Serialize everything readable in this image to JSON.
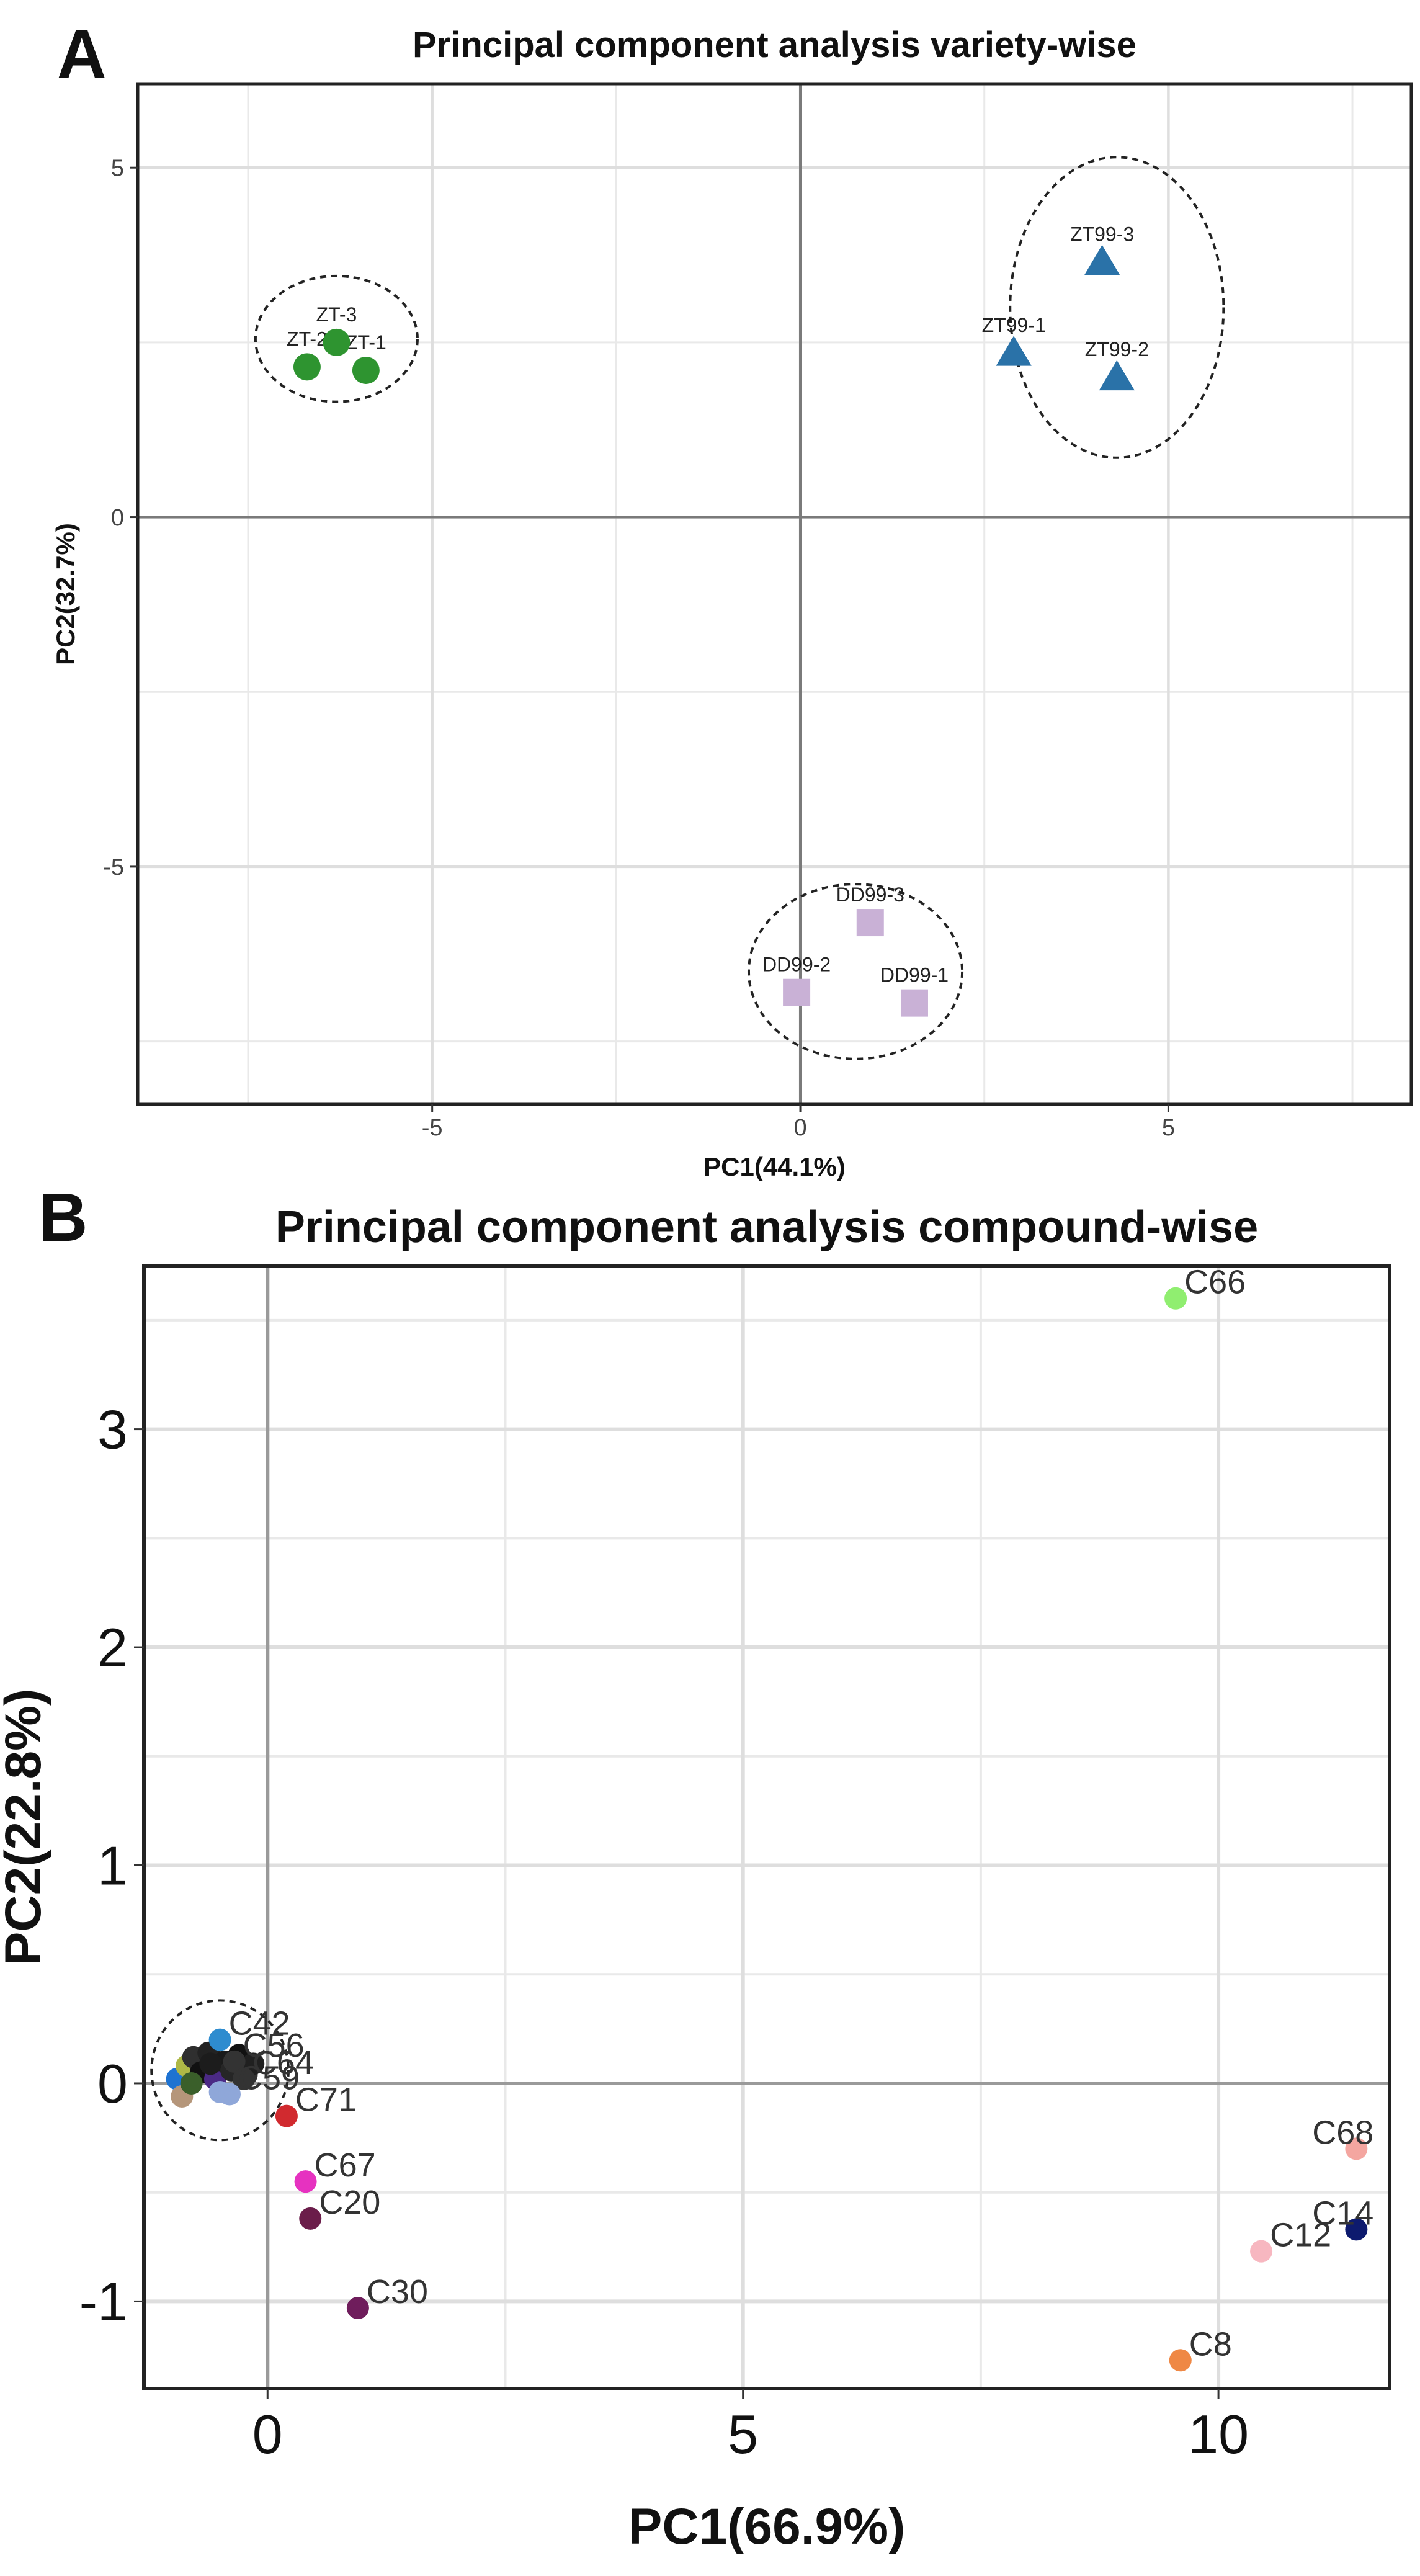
{
  "figure": {
    "panels": [
      "A",
      "B"
    ]
  },
  "chart_data": [
    {
      "type": "scatter",
      "panel": "A",
      "title": "Principal component analysis variety-wise",
      "xlabel": "PC1(44.1%)",
      "ylabel": "PC2(32.7%)",
      "xlim": [
        -9,
        8.3
      ],
      "ylim": [
        -8.4,
        6.2
      ],
      "xticks": [
        -5,
        0,
        5
      ],
      "yticks": [
        -5,
        0,
        5
      ],
      "xminor": [
        -7.5,
        -2.5,
        2.5,
        7.5
      ],
      "yminor": [
        -7.5,
        -2.5,
        2.5
      ],
      "grid": true,
      "zero_lines": true,
      "series": [
        {
          "name": "ZT",
          "marker": "circle",
          "color": "#2e9430",
          "points": [
            {
              "label": "ZT-1",
              "x": -5.9,
              "y": 2.1
            },
            {
              "label": "ZT-2",
              "x": -6.7,
              "y": 2.15
            },
            {
              "label": "ZT-3",
              "x": -6.3,
              "y": 2.5
            }
          ],
          "ellipse": {
            "cx": -6.3,
            "cy": 2.55,
            "rx": 1.1,
            "ry": 0.9
          }
        },
        {
          "name": "ZT99",
          "marker": "triangle",
          "color": "#2a72a8",
          "points": [
            {
              "label": "ZT99-1",
              "x": 2.9,
              "y": 2.35
            },
            {
              "label": "ZT99-2",
              "x": 4.3,
              "y": 2.0
            },
            {
              "label": "ZT99-3",
              "x": 4.1,
              "y": 3.65
            }
          ],
          "ellipse": {
            "cx": 4.3,
            "cy": 3.0,
            "rx": 1.45,
            "ry": 2.15
          }
        },
        {
          "name": "DD99",
          "marker": "square",
          "color": "#c9b1d6",
          "points": [
            {
              "label": "DD99-1",
              "x": 1.55,
              "y": -6.95
            },
            {
              "label": "DD99-2",
              "x": -0.05,
              "y": -6.8
            },
            {
              "label": "DD99-3",
              "x": 0.95,
              "y": -5.8
            }
          ],
          "ellipse": {
            "cx": 0.75,
            "cy": -6.5,
            "rx": 1.45,
            "ry": 1.25
          }
        }
      ]
    },
    {
      "type": "scatter",
      "panel": "B",
      "title": "Principal component analysis compound-wise",
      "xlabel": "PC1(66.9%)",
      "ylabel": "PC2(22.8%)",
      "xlim": [
        -1.3,
        11.8
      ],
      "ylim": [
        -1.4,
        3.75
      ],
      "xticks": [
        0,
        5,
        10
      ],
      "yticks": [
        -1,
        0,
        1,
        2,
        3
      ],
      "xminor": [
        -2.5,
        2.5,
        7.5
      ],
      "yminor": [
        -0.5,
        0.5,
        1.5,
        2.5,
        3.5
      ],
      "grid": true,
      "zero_lines": true,
      "cluster_ellipse": {
        "cx": -0.5,
        "cy": 0.06,
        "rx": 0.72,
        "ry": 0.32
      },
      "points": [
        {
          "label": "C66",
          "x": 9.55,
          "y": 3.6,
          "color": "#90ee70"
        },
        {
          "label": "C68",
          "x": 11.45,
          "y": -0.3,
          "color": "#f4a6a0"
        },
        {
          "label": "C14",
          "x": 11.45,
          "y": -0.67,
          "color": "#0d1a6e"
        },
        {
          "label": "C12",
          "x": 10.45,
          "y": -0.77,
          "color": "#f7b7c0"
        },
        {
          "label": "C8",
          "x": 9.6,
          "y": -1.27,
          "color": "#ef8845"
        },
        {
          "label": "C71",
          "x": 0.2,
          "y": -0.15,
          "color": "#d12a2f"
        },
        {
          "label": "C67",
          "x": 0.4,
          "y": -0.45,
          "color": "#e632c0"
        },
        {
          "label": "C20",
          "x": 0.45,
          "y": -0.62,
          "color": "#6b1d4a"
        },
        {
          "label": "C30",
          "x": 0.95,
          "y": -1.03,
          "color": "#6f1d5c"
        },
        {
          "label": "C42",
          "x": -0.5,
          "y": 0.2,
          "color": "#2e8ccf"
        },
        {
          "label": "C56",
          "x": -0.35,
          "y": 0.1,
          "color": "#333333"
        },
        {
          "label": "C64",
          "x": -0.25,
          "y": 0.02,
          "color": "#333333"
        },
        {
          "label": "C59",
          "x": -0.4,
          "y": -0.05,
          "color": "#8fa7d9"
        }
      ],
      "cluster_points": [
        {
          "x": -0.95,
          "y": 0.02,
          "color": "#1e73d2"
        },
        {
          "x": -0.9,
          "y": -0.06,
          "color": "#b5967a"
        },
        {
          "x": -0.85,
          "y": 0.08,
          "color": "#aeb846"
        },
        {
          "x": -0.78,
          "y": 0.12,
          "color": "#2f2f2f"
        },
        {
          "x": -0.7,
          "y": 0.05,
          "color": "#111111"
        },
        {
          "x": -0.62,
          "y": 0.14,
          "color": "#222222"
        },
        {
          "x": -0.55,
          "y": 0.02,
          "color": "#4b2a85"
        },
        {
          "x": -0.5,
          "y": -0.04,
          "color": "#8fa7d9"
        },
        {
          "x": -0.45,
          "y": 0.1,
          "color": "#1a1a1a"
        },
        {
          "x": -0.38,
          "y": 0.06,
          "color": "#262626"
        },
        {
          "x": -0.3,
          "y": 0.13,
          "color": "#111111"
        },
        {
          "x": -0.22,
          "y": 0.04,
          "color": "#333333"
        },
        {
          "x": -0.15,
          "y": 0.09,
          "color": "#202020"
        },
        {
          "x": -0.6,
          "y": 0.09,
          "color": "#1c1c1c"
        },
        {
          "x": -0.8,
          "y": 0.0,
          "color": "#3a5f2a"
        }
      ]
    }
  ]
}
